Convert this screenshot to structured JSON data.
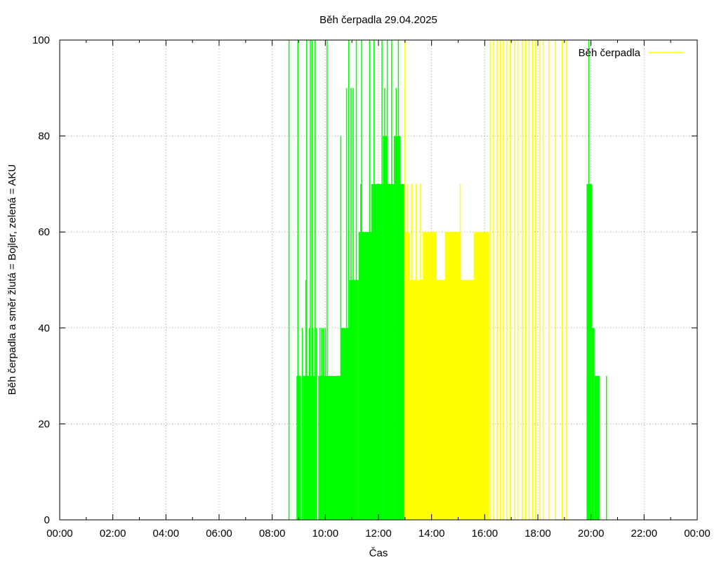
{
  "chart_data": {
    "type": "bar",
    "title": "Běh čerpadla 29.04.2025",
    "xlabel": "Čas",
    "ylabel": "Běh čerpadla a směr žlutá = Bojler, zelená = AKU",
    "xlim": [
      "00:00",
      "24:00"
    ],
    "ylim": [
      0,
      100
    ],
    "x_ticks": [
      "00:00",
      "02:00",
      "04:00",
      "06:00",
      "08:00",
      "10:00",
      "12:00",
      "14:00",
      "16:00",
      "18:00",
      "20:00",
      "22:00",
      "00:00"
    ],
    "y_ticks": [
      "0",
      "20",
      "40",
      "60",
      "80",
      "100"
    ],
    "grid": true,
    "legend": {
      "position": "top-right",
      "label": "Běh čerpadla",
      "color": "#ffff00"
    },
    "colors": {
      "aku": "#00ff00",
      "bojler": "#ffff00"
    },
    "series": [
      {
        "color": "#00ff00",
        "spikes": [
          {
            "t": "08:38",
            "v": 100
          },
          {
            "t": "08:56",
            "v": 30
          },
          {
            "t": "08:58",
            "v": 100
          },
          {
            "t": "09:08",
            "v": 40
          },
          {
            "t": "09:16",
            "v": 50
          },
          {
            "t": "09:18",
            "v": 100
          },
          {
            "t": "09:24",
            "v": 40
          },
          {
            "t": "09:26",
            "v": 100
          },
          {
            "t": "09:30",
            "v": 100
          },
          {
            "t": "09:32",
            "v": 40
          },
          {
            "t": "09:37",
            "v": 100
          },
          {
            "t": "09:40",
            "v": 40
          },
          {
            "t": "09:48",
            "v": 40
          },
          {
            "t": "09:52",
            "v": 40
          },
          {
            "t": "09:56",
            "v": 40
          },
          {
            "t": "10:00",
            "v": 40
          },
          {
            "t": "10:04",
            "v": 100
          },
          {
            "t": "10:35",
            "v": 80
          },
          {
            "t": "10:48",
            "v": 90
          },
          {
            "t": "10:53",
            "v": 100
          },
          {
            "t": "10:58",
            "v": 90
          },
          {
            "t": "11:03",
            "v": 90
          },
          {
            "t": "11:10",
            "v": 100
          },
          {
            "t": "11:20",
            "v": 70
          },
          {
            "t": "11:22",
            "v": 100
          },
          {
            "t": "11:30",
            "v": 60
          },
          {
            "t": "11:40",
            "v": 100
          },
          {
            "t": "11:45",
            "v": 70
          },
          {
            "t": "11:50",
            "v": 100
          },
          {
            "t": "11:58",
            "v": 70
          },
          {
            "t": "12:08",
            "v": 100
          },
          {
            "t": "12:14",
            "v": 90
          },
          {
            "t": "12:20",
            "v": 100
          },
          {
            "t": "12:30",
            "v": 100
          },
          {
            "t": "12:40",
            "v": 90
          },
          {
            "t": "12:45",
            "v": 100
          },
          {
            "t": "19:55",
            "v": 100
          },
          {
            "t": "20:35",
            "v": 30
          }
        ],
        "blocks": [
          {
            "start": "08:58",
            "end": "09:05",
            "v": 30
          },
          {
            "start": "09:10",
            "end": "09:24",
            "v": 30
          },
          {
            "start": "09:26",
            "end": "09:36",
            "v": 30
          },
          {
            "start": "09:44",
            "end": "10:35",
            "v": 30
          },
          {
            "start": "10:35",
            "end": "10:55",
            "v": 40
          },
          {
            "start": "10:55",
            "end": "11:15",
            "v": 50
          },
          {
            "start": "11:15",
            "end": "11:45",
            "v": 60
          },
          {
            "start": "11:45",
            "end": "12:10",
            "v": 70
          },
          {
            "start": "12:10",
            "end": "12:20",
            "v": 80
          },
          {
            "start": "12:20",
            "end": "12:35",
            "v": 70
          },
          {
            "start": "12:35",
            "end": "12:50",
            "v": 80
          },
          {
            "start": "12:50",
            "end": "12:58",
            "v": 70
          },
          {
            "start": "19:50",
            "end": "20:02",
            "v": 70
          },
          {
            "start": "20:02",
            "end": "20:08",
            "v": 40
          },
          {
            "start": "20:08",
            "end": "20:20",
            "v": 30
          }
        ]
      },
      {
        "color": "#ffff00",
        "spikes": [
          {
            "t": "13:00",
            "v": 100
          },
          {
            "t": "13:05",
            "v": 70
          },
          {
            "t": "13:15",
            "v": 70
          },
          {
            "t": "13:25",
            "v": 70
          },
          {
            "t": "13:35",
            "v": 70
          },
          {
            "t": "15:05",
            "v": 70
          },
          {
            "t": "16:12",
            "v": 100
          },
          {
            "t": "16:20",
            "v": 100
          },
          {
            "t": "16:28",
            "v": 100
          },
          {
            "t": "16:35",
            "v": 100
          },
          {
            "t": "16:42",
            "v": 100
          },
          {
            "t": "16:50",
            "v": 100
          },
          {
            "t": "16:58",
            "v": 100
          },
          {
            "t": "17:08",
            "v": 100
          },
          {
            "t": "17:15",
            "v": 100
          },
          {
            "t": "17:25",
            "v": 100
          },
          {
            "t": "17:32",
            "v": 100
          },
          {
            "t": "17:40",
            "v": 100
          },
          {
            "t": "17:48",
            "v": 100
          },
          {
            "t": "17:55",
            "v": 100
          },
          {
            "t": "18:05",
            "v": 100
          },
          {
            "t": "18:12",
            "v": 100
          },
          {
            "t": "18:25",
            "v": 100
          },
          {
            "t": "18:40",
            "v": 100
          },
          {
            "t": "18:55",
            "v": 100
          },
          {
            "t": "19:05",
            "v": 100
          }
        ],
        "blocks": [
          {
            "start": "12:58",
            "end": "13:10",
            "v": 60
          },
          {
            "start": "13:10",
            "end": "13:40",
            "v": 50
          },
          {
            "start": "13:40",
            "end": "14:10",
            "v": 60
          },
          {
            "start": "14:10",
            "end": "14:30",
            "v": 50
          },
          {
            "start": "14:30",
            "end": "15:05",
            "v": 60
          },
          {
            "start": "15:05",
            "end": "15:35",
            "v": 50
          },
          {
            "start": "15:35",
            "end": "16:10",
            "v": 60
          }
        ]
      }
    ]
  }
}
